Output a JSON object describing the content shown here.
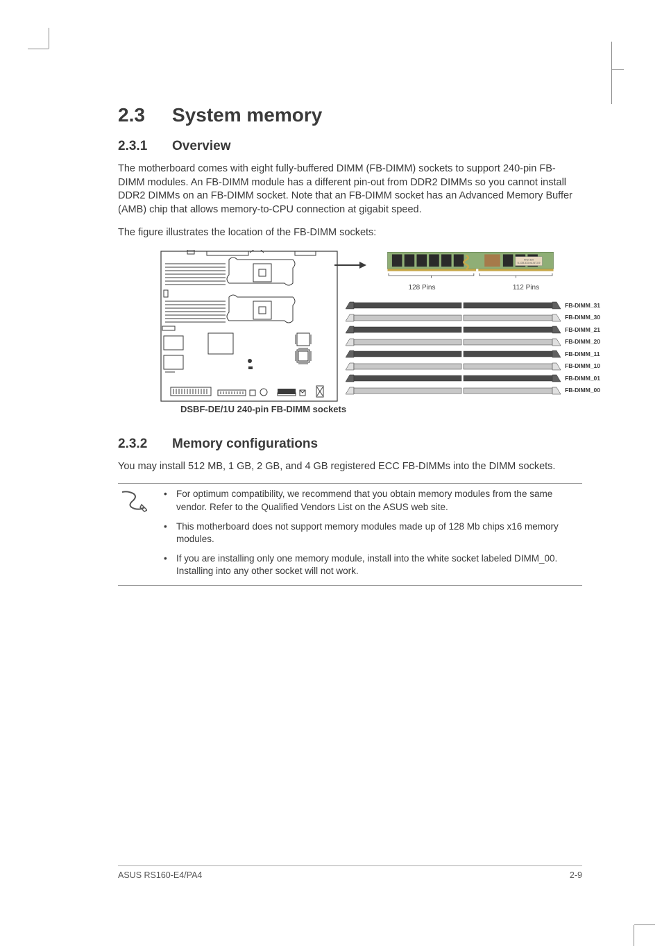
{
  "heading1": {
    "num": "2.3",
    "title": "System memory"
  },
  "section1": {
    "num": "2.3.1",
    "title": "Overview",
    "para1": "The motherboard comes with eight fully-buffered DIMM (FB-DIMM) sockets to support 240-pin FB-DIMM modules. An FB-DIMM module has a different pin-out from DDR2 DIMMs so you cannot install DDR2 DIMMs on an FB-DIMM socket. Note that an FB-DIMM socket has an Advanced Memory Buffer (AMB) chip that allows memory-to-CPU connection at gigabit speed.",
    "para2": "The figure illustrates the location of the FB-DIMM sockets:"
  },
  "figure": {
    "pin_left": "128 Pins",
    "pin_right": "112 Pins",
    "module_label1": "KN2-320",
    "module_label2": "B-1GB-533-m4-lNT-D9",
    "slots": [
      {
        "label": "FB-DIMM_31",
        "light": false
      },
      {
        "label": "FB-DIMM_30",
        "light": true
      },
      {
        "label": "FB-DIMM_21",
        "light": false
      },
      {
        "label": "FB-DIMM_20",
        "light": true
      },
      {
        "label": "FB-DIMM_11",
        "light": false
      },
      {
        "label": "FB-DIMM_10",
        "light": true
      },
      {
        "label": "FB-DIMM_01",
        "light": false
      },
      {
        "label": "FB-DIMM_00",
        "light": true
      }
    ],
    "caption": "DSBF-DE/1U 240-pin FB-DIMM sockets",
    "colors": {
      "pcb_green": "#8fae76",
      "dark_slot": "#4a4a4a",
      "light_slot": "#c8c8c8",
      "chip_brown": "#a67a4a",
      "gold": "#c8a84a",
      "outline": "#3a3a3a"
    }
  },
  "section2": {
    "num": "2.3.2",
    "title": "Memory configurations",
    "para1": "You may install 512 MB, 1 GB, 2 GB, and 4 GB registered ECC FB-DIMMs into the DIMM sockets.",
    "notes": [
      "For optimum compatibility, we recommend that you obtain memory modules from the same vendor. Refer to the Qualified Vendors List on the ASUS web site.",
      "This motherboard does not support memory modules made up of 128 Mb chips x16 memory modules.",
      "If you are installing only one memory module, install into the white socket labeled DIMM_00. Installing into any other socket will not work."
    ]
  },
  "footer": {
    "left": "ASUS RS160-E4/PA4",
    "right": "2-9"
  }
}
